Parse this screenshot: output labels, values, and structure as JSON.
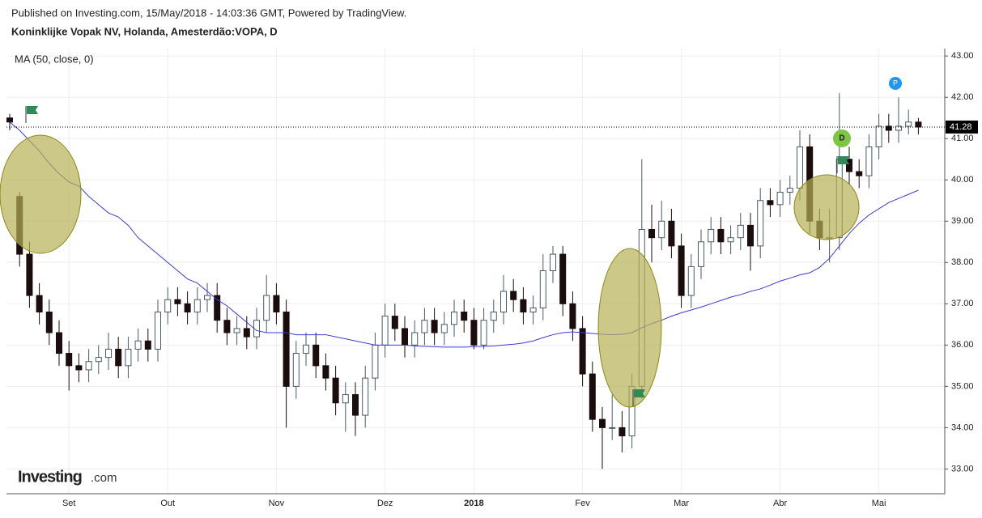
{
  "header": {
    "published": "Published on Investing.com, 15/May/2018 - 14:03:36 GMT, Powered by TradingView.",
    "logo": {
      "name": "Investing",
      "suffix": ".com"
    }
  },
  "chart_data": {
    "type": "candlestick",
    "title": "Koninklijke Vopak NV, Holanda, Amesterdão:VOPA, D",
    "categories": [
      null,
      null,
      null,
      null,
      null,
      null,
      "Set",
      null,
      null,
      null,
      null,
      null,
      null,
      null,
      null,
      null,
      "Out",
      null,
      null,
      null,
      null,
      null,
      null,
      null,
      null,
      null,
      null,
      "Nov",
      null,
      null,
      null,
      null,
      null,
      null,
      null,
      null,
      null,
      null,
      "Dez",
      null,
      null,
      null,
      null,
      null,
      null,
      null,
      null,
      "2018",
      null,
      null,
      null,
      null,
      null,
      null,
      null,
      null,
      null,
      null,
      "Fev",
      null,
      null,
      null,
      null,
      null,
      null,
      null,
      null,
      null,
      "Mar",
      null,
      null,
      null,
      null,
      null,
      null,
      null,
      null,
      null,
      "Abr",
      null,
      null,
      null,
      null,
      null,
      null,
      null,
      null,
      null,
      "Mai",
      null,
      null,
      null,
      null
    ],
    "open": [
      41.5,
      39.6,
      38.2,
      37.2,
      36.8,
      36.3,
      35.8,
      35.5,
      35.4,
      35.6,
      35.7,
      35.9,
      35.5,
      35.9,
      36.1,
      35.9,
      36.8,
      37.1,
      37.0,
      36.8,
      37.1,
      37.2,
      36.6,
      36.3,
      36.4,
      36.2,
      36.6,
      37.2,
      36.8,
      35.0,
      35.8,
      36.0,
      35.5,
      35.2,
      34.6,
      34.8,
      34.3,
      35.2,
      36.0,
      36.7,
      36.4,
      36.0,
      36.3,
      36.6,
      36.3,
      36.5,
      36.8,
      36.6,
      36.0,
      36.6,
      36.8,
      37.3,
      37.1,
      36.8,
      36.9,
      37.8,
      38.2,
      37.0,
      36.4,
      35.3,
      34.2,
      34.0,
      34.0,
      33.8,
      35.0,
      38.8,
      38.6,
      39.0,
      38.4,
      37.2,
      37.9,
      38.5,
      38.8,
      38.5,
      38.6,
      38.9,
      38.4,
      39.5,
      39.4,
      39.7,
      39.8,
      40.8,
      39.0,
      38.6,
      38.6,
      40.5,
      40.2,
      40.1,
      40.8,
      41.3,
      41.2,
      41.3,
      41.4
    ],
    "high": [
      41.6,
      39.7,
      38.5,
      37.5,
      37.1,
      36.6,
      36.1,
      35.8,
      35.9,
      36.0,
      36.3,
      36.2,
      36.2,
      36.4,
      36.4,
      37.1,
      37.4,
      37.4,
      37.3,
      37.4,
      37.5,
      37.5,
      36.9,
      36.7,
      36.7,
      36.9,
      37.7,
      37.5,
      37.1,
      36.1,
      36.3,
      36.3,
      35.8,
      35.5,
      35.1,
      35.1,
      35.5,
      36.3,
      37.0,
      37.0,
      36.7,
      36.6,
      36.9,
      36.9,
      36.8,
      37.1,
      37.1,
      36.9,
      36.9,
      37.1,
      37.7,
      37.6,
      37.4,
      37.2,
      38.2,
      38.4,
      38.4,
      37.3,
      36.7,
      35.6,
      34.5,
      34.8,
      34.4,
      35.3,
      40.5,
      39.4,
      39.5,
      39.3,
      38.7,
      38.2,
      38.8,
      39.1,
      39.1,
      38.9,
      39.2,
      39.2,
      39.8,
      39.8,
      40.0,
      40.1,
      41.2,
      41.1,
      39.3,
      39.3,
      42.1,
      40.8,
      40.5,
      41.1,
      41.6,
      41.6,
      42.0,
      41.7,
      41.5
    ],
    "low": [
      41.2,
      37.9,
      36.9,
      36.5,
      36.0,
      35.5,
      34.9,
      35.1,
      35.1,
      35.3,
      35.4,
      35.2,
      35.2,
      35.6,
      35.6,
      35.6,
      36.5,
      36.7,
      36.5,
      36.5,
      36.8,
      36.3,
      36.0,
      36.0,
      35.9,
      35.9,
      36.3,
      36.5,
      34.0,
      34.7,
      35.5,
      35.2,
      34.9,
      34.3,
      33.9,
      33.8,
      34.0,
      34.9,
      35.7,
      36.1,
      35.7,
      35.7,
      36.0,
      36.0,
      36.0,
      36.2,
      36.3,
      35.9,
      35.9,
      36.3,
      36.5,
      36.8,
      36.5,
      36.5,
      36.6,
      37.5,
      36.7,
      36.1,
      35.0,
      33.9,
      33.0,
      33.7,
      33.4,
      33.5,
      34.7,
      38.0,
      38.3,
      38.1,
      36.9,
      36.9,
      37.6,
      38.2,
      38.2,
      38.2,
      38.3,
      37.8,
      38.1,
      39.1,
      39.1,
      39.4,
      39.5,
      38.7,
      38.3,
      38.0,
      38.3,
      39.9,
      39.8,
      39.8,
      40.5,
      40.9,
      40.9,
      41.1,
      41.1
    ],
    "close": [
      41.4,
      38.2,
      37.2,
      36.8,
      36.3,
      35.8,
      35.5,
      35.4,
      35.6,
      35.7,
      35.9,
      35.5,
      35.9,
      36.1,
      35.9,
      36.8,
      37.1,
      37.0,
      36.8,
      37.1,
      37.2,
      36.6,
      36.3,
      36.4,
      36.2,
      36.6,
      37.2,
      36.8,
      35.0,
      35.8,
      36.0,
      35.5,
      35.2,
      34.6,
      34.8,
      34.3,
      35.2,
      36.0,
      36.7,
      36.4,
      36.0,
      36.3,
      36.6,
      36.3,
      36.5,
      36.8,
      36.6,
      36.0,
      36.6,
      36.8,
      37.3,
      37.1,
      36.8,
      36.9,
      37.8,
      38.2,
      37.0,
      36.4,
      35.3,
      34.2,
      34.0,
      34.0,
      33.8,
      35.0,
      38.8,
      38.6,
      39.0,
      38.4,
      37.2,
      37.9,
      38.5,
      38.8,
      38.5,
      38.6,
      38.9,
      38.4,
      39.5,
      39.4,
      39.7,
      39.8,
      40.8,
      39.0,
      38.6,
      38.6,
      40.5,
      40.2,
      40.1,
      40.8,
      41.3,
      41.2,
      41.3,
      41.4,
      41.28
    ],
    "up_color": "#ffffff",
    "down_color": "#1a0d0d",
    "series": [
      {
        "name": "MA (50, close, 0)",
        "color": "#3b3bd6",
        "values": [
          41.4,
          41.2,
          40.95,
          40.7,
          40.4,
          40.15,
          39.95,
          39.85,
          39.6,
          39.4,
          39.2,
          39.1,
          38.9,
          38.6,
          38.4,
          38.2,
          38.0,
          37.8,
          37.6,
          37.5,
          37.3,
          37.1,
          36.95,
          36.75,
          36.55,
          36.35,
          36.3,
          36.3,
          36.3,
          36.25,
          36.25,
          36.25,
          36.25,
          36.2,
          36.15,
          36.1,
          36.05,
          36.0,
          36.0,
          36.0,
          36.0,
          35.98,
          35.97,
          35.96,
          35.95,
          35.95,
          35.95,
          35.96,
          35.97,
          35.98,
          36.0,
          36.02,
          36.05,
          36.1,
          36.18,
          36.25,
          36.3,
          36.32,
          36.3,
          36.28,
          36.26,
          36.25,
          36.26,
          36.3,
          36.42,
          36.52,
          36.6,
          36.7,
          36.78,
          36.85,
          36.92,
          37.0,
          37.08,
          37.16,
          37.22,
          37.3,
          37.36,
          37.45,
          37.55,
          37.62,
          37.7,
          37.75,
          37.88,
          38.1,
          38.4,
          38.7,
          38.95,
          39.15,
          39.3,
          39.45,
          39.55,
          39.65,
          39.75
        ]
      }
    ],
    "ylim": [
      32.4,
      43.18
    ],
    "yticks": [
      {
        "value": 33,
        "label": "33.00"
      },
      {
        "value": 34,
        "label": "34.00"
      },
      {
        "value": 35,
        "label": "35.00"
      },
      {
        "value": 36,
        "label": "36.00"
      },
      {
        "value": 37,
        "label": "37.00"
      },
      {
        "value": 38,
        "label": "38.00"
      },
      {
        "value": 39,
        "label": "39.00"
      },
      {
        "value": 40,
        "label": "40.00"
      },
      {
        "value": 41,
        "label": "41.00"
      },
      {
        "value": 42,
        "label": "42.00"
      },
      {
        "value": 43,
        "label": "43.00"
      }
    ],
    "grid": true,
    "markers": [
      {
        "label": "D"
      },
      {
        "label": "P"
      }
    ]
  }
}
